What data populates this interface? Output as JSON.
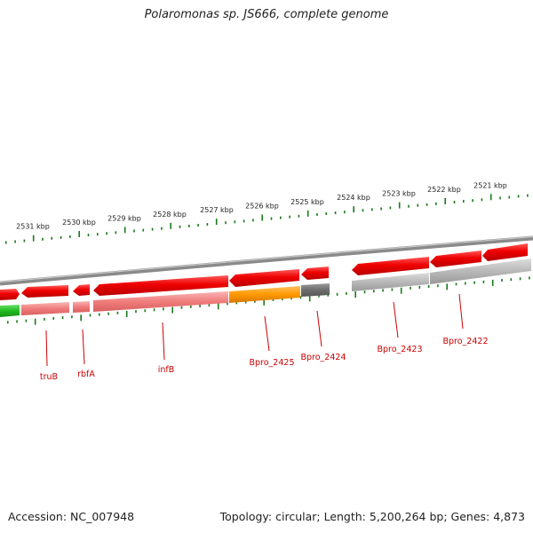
{
  "title": "Polaromonas sp. JS666, complete genome",
  "footer": {
    "accession": "Accession: NC_007948",
    "summary": "Topology: circular; Length: 5,200,264 bp; Genes: 4,873"
  },
  "scale_labels": [
    "2531 kbp",
    "2530 kbp",
    "2529 kbp",
    "2528 kbp",
    "2527 kbp",
    "2526 kbp",
    "2525 kbp",
    "2524 kbp",
    "2523 kbp",
    "2522 kbp",
    "2521 kbp"
  ],
  "gene_labels": [
    "truB",
    "rbfA",
    "infB",
    "Bpro_2425",
    "Bpro_2424",
    "Bpro_2423",
    "Bpro_2422"
  ],
  "colors": {
    "gene_red": "#ee0000",
    "gene_light_red": "#f08080",
    "orange": "#ff9900",
    "dark_gray": "#707070",
    "light_gray": "#b0b0b0",
    "green": "#22bb22",
    "tick_green": "#1a7a1a",
    "label_red": "#cc0000"
  }
}
